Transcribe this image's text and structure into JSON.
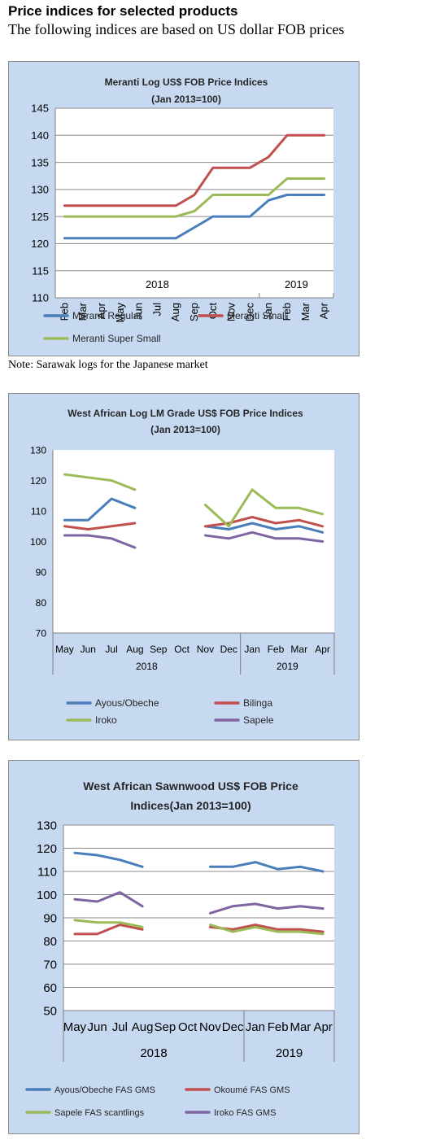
{
  "page": {
    "heading": "Price indices for selected products",
    "subheading": "The following indices are based on US dollar FOB prices",
    "note": "Note: Sarawak logs for the Japanese market"
  },
  "chart_data": [
    {
      "type": "line",
      "title": [
        "Meranti Log US$ FOB Price Indices",
        "(Jan 2013=100)"
      ],
      "categories": [
        "Feb",
        "Mar",
        "Apr",
        "May",
        "Jun",
        "Jul",
        "Aug",
        "Sep",
        "Oct",
        "Nov",
        "Dec",
        "Jan",
        "Feb",
        "Mar",
        "Apr"
      ],
      "year_groups": [
        {
          "label": "2018",
          "span": 11
        },
        {
          "label": "2019",
          "span": 4
        }
      ],
      "ylim": [
        110,
        145
      ],
      "yticks": [
        110,
        115,
        120,
        125,
        130,
        135,
        140,
        145
      ],
      "grid": true,
      "legend_position": "bottom",
      "series": [
        {
          "name": "Meranti Regular",
          "color": "#4a7ebb",
          "values": [
            121,
            121,
            121,
            121,
            121,
            121,
            121,
            123,
            125,
            125,
            125,
            128,
            129,
            129,
            129
          ]
        },
        {
          "name": "Meranti Small",
          "color": "#c0504d",
          "values": [
            127,
            127,
            127,
            127,
            127,
            127,
            127,
            129,
            134,
            134,
            134,
            136,
            140,
            140,
            140
          ]
        },
        {
          "name": "Meranti Super Small",
          "color": "#9bbb59",
          "values": [
            125,
            125,
            125,
            125,
            125,
            125,
            125,
            126,
            129,
            129,
            129,
            129,
            132,
            132,
            132
          ]
        }
      ]
    },
    {
      "type": "line",
      "title": [
        "West African Log LM Grade US$ FOB Price Indices",
        "(Jan 2013=100)"
      ],
      "categories": [
        "May",
        "Jun",
        "Jul",
        "Aug",
        "Sep",
        "Oct",
        "Nov",
        "Dec",
        "Jan",
        "Feb",
        "Mar",
        "Apr"
      ],
      "year_groups": [
        {
          "label": "2018",
          "span": 8
        },
        {
          "label": "2019",
          "span": 4
        }
      ],
      "ylim": [
        70,
        130
      ],
      "yticks": [
        70,
        80,
        90,
        100,
        110,
        120,
        130
      ],
      "grid": false,
      "legend_position": "bottom",
      "series": [
        {
          "name": "Ayous/Obeche",
          "color": "#4a7ebb",
          "values": [
            107,
            107,
            114,
            111,
            null,
            null,
            105,
            104,
            106,
            104,
            105,
            103
          ]
        },
        {
          "name": "Bilinga",
          "color": "#c0504d",
          "values": [
            105,
            104,
            105,
            106,
            null,
            null,
            105,
            106,
            108,
            106,
            107,
            105
          ]
        },
        {
          "name": "Iroko",
          "color": "#9bbb59",
          "values": [
            122,
            121,
            120,
            117,
            null,
            null,
            112,
            105,
            117,
            111,
            111,
            109
          ]
        },
        {
          "name": "Sapele",
          "color": "#8064a2",
          "values": [
            102,
            102,
            101,
            98,
            null,
            null,
            102,
            101,
            103,
            101,
            101,
            100
          ]
        }
      ]
    },
    {
      "type": "line",
      "title": [
        "West African Sawnwood US$ FOB Price",
        "Indices(Jan 2013=100)"
      ],
      "categories": [
        "May",
        "Jun",
        "Jul",
        "Aug",
        "Sep",
        "Oct",
        "Nov",
        "Dec",
        "Jan",
        "Feb",
        "Mar",
        "Apr"
      ],
      "year_groups": [
        {
          "label": "2018",
          "span": 8
        },
        {
          "label": "2019",
          "span": 4
        }
      ],
      "ylim": [
        50,
        130
      ],
      "yticks": [
        50,
        60,
        70,
        80,
        90,
        100,
        110,
        120,
        130
      ],
      "grid": true,
      "legend_position": "bottom",
      "series": [
        {
          "name": "Ayous/Obeche FAS GMS",
          "color": "#4a7ebb",
          "values": [
            118,
            117,
            115,
            112,
            null,
            null,
            112,
            112,
            114,
            111,
            112,
            110
          ]
        },
        {
          "name": "Okoumé FAS GMS",
          "color": "#c0504d",
          "values": [
            83,
            83,
            87,
            85,
            null,
            null,
            86,
            85,
            87,
            85,
            85,
            84
          ]
        },
        {
          "name": "Sapele FAS scantlings",
          "color": "#9bbb59",
          "values": [
            89,
            88,
            88,
            86,
            null,
            null,
            87,
            84,
            86,
            84,
            84,
            83
          ]
        },
        {
          "name": "Iroko FAS GMS",
          "color": "#8064a2",
          "values": [
            98,
            97,
            101,
            95,
            null,
            null,
            92,
            95,
            96,
            94,
            95,
            94
          ]
        }
      ]
    }
  ]
}
